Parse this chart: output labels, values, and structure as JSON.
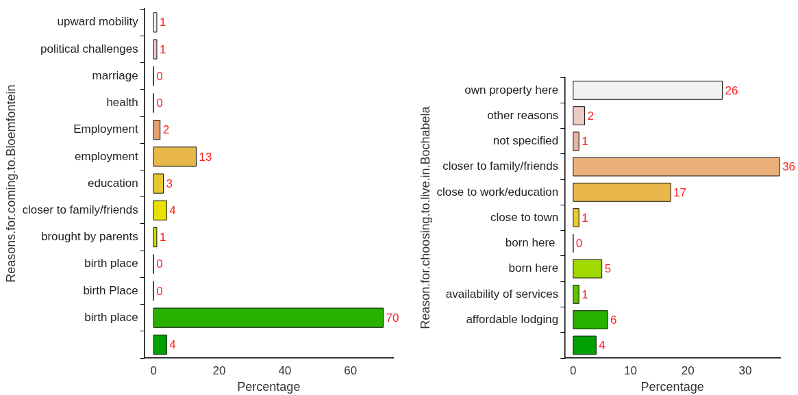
{
  "chart_data": [
    {
      "type": "bar",
      "orientation": "horizontal",
      "xlabel": "Percentage",
      "ylabel": "Reasons.for.coming.to.Bloemfontein",
      "categories": [
        "upward mobility",
        "political challenges",
        "marriage",
        "health",
        "Employment",
        "employment",
        "education",
        "closer to family/friends",
        "brought by parents",
        "birth place",
        "birth Place",
        "birth place",
        null
      ],
      "values": [
        1,
        1,
        0,
        0,
        2,
        13,
        3,
        4,
        1,
        0,
        0,
        70,
        4
      ],
      "colors": [
        "#f3eded",
        "#f0c8c8",
        "#111111",
        "#111111",
        "#e8a070",
        "#e8b84a",
        "#e8c830",
        "#e8e000",
        "#c8d800",
        "#111111",
        "#111111",
        "#28b000",
        "#00a000"
      ],
      "xlim": [
        -2.8,
        73
      ],
      "xticks": [
        0,
        20,
        40,
        60
      ],
      "grid": false,
      "data_labels": true
    },
    {
      "type": "bar",
      "orientation": "horizontal",
      "xlabel": "Percentage",
      "ylabel": "Reason.for.choosing.to.live.in.Bochabela",
      "categories": [
        "own property here",
        "other reasons",
        "not specified",
        "closer to family/friends",
        "close to work/education",
        "close to town",
        "born here ",
        "born here",
        "availability of services",
        "affordable lodging",
        null
      ],
      "values": [
        26,
        2,
        1,
        36,
        17,
        1,
        0,
        5,
        1,
        6,
        4
      ],
      "colors": [
        "#f2f2f2",
        "#eecac4",
        "#e8b4a0",
        "#ebb07a",
        "#e8b84a",
        "#e8c830",
        "#111111",
        "#a0d800",
        "#60c000",
        "#28b000",
        "#00a000"
      ],
      "xlim": [
        -1.5,
        36.1
      ],
      "xticks": [
        0,
        10,
        20,
        30
      ],
      "grid": false,
      "data_labels": true
    }
  ]
}
